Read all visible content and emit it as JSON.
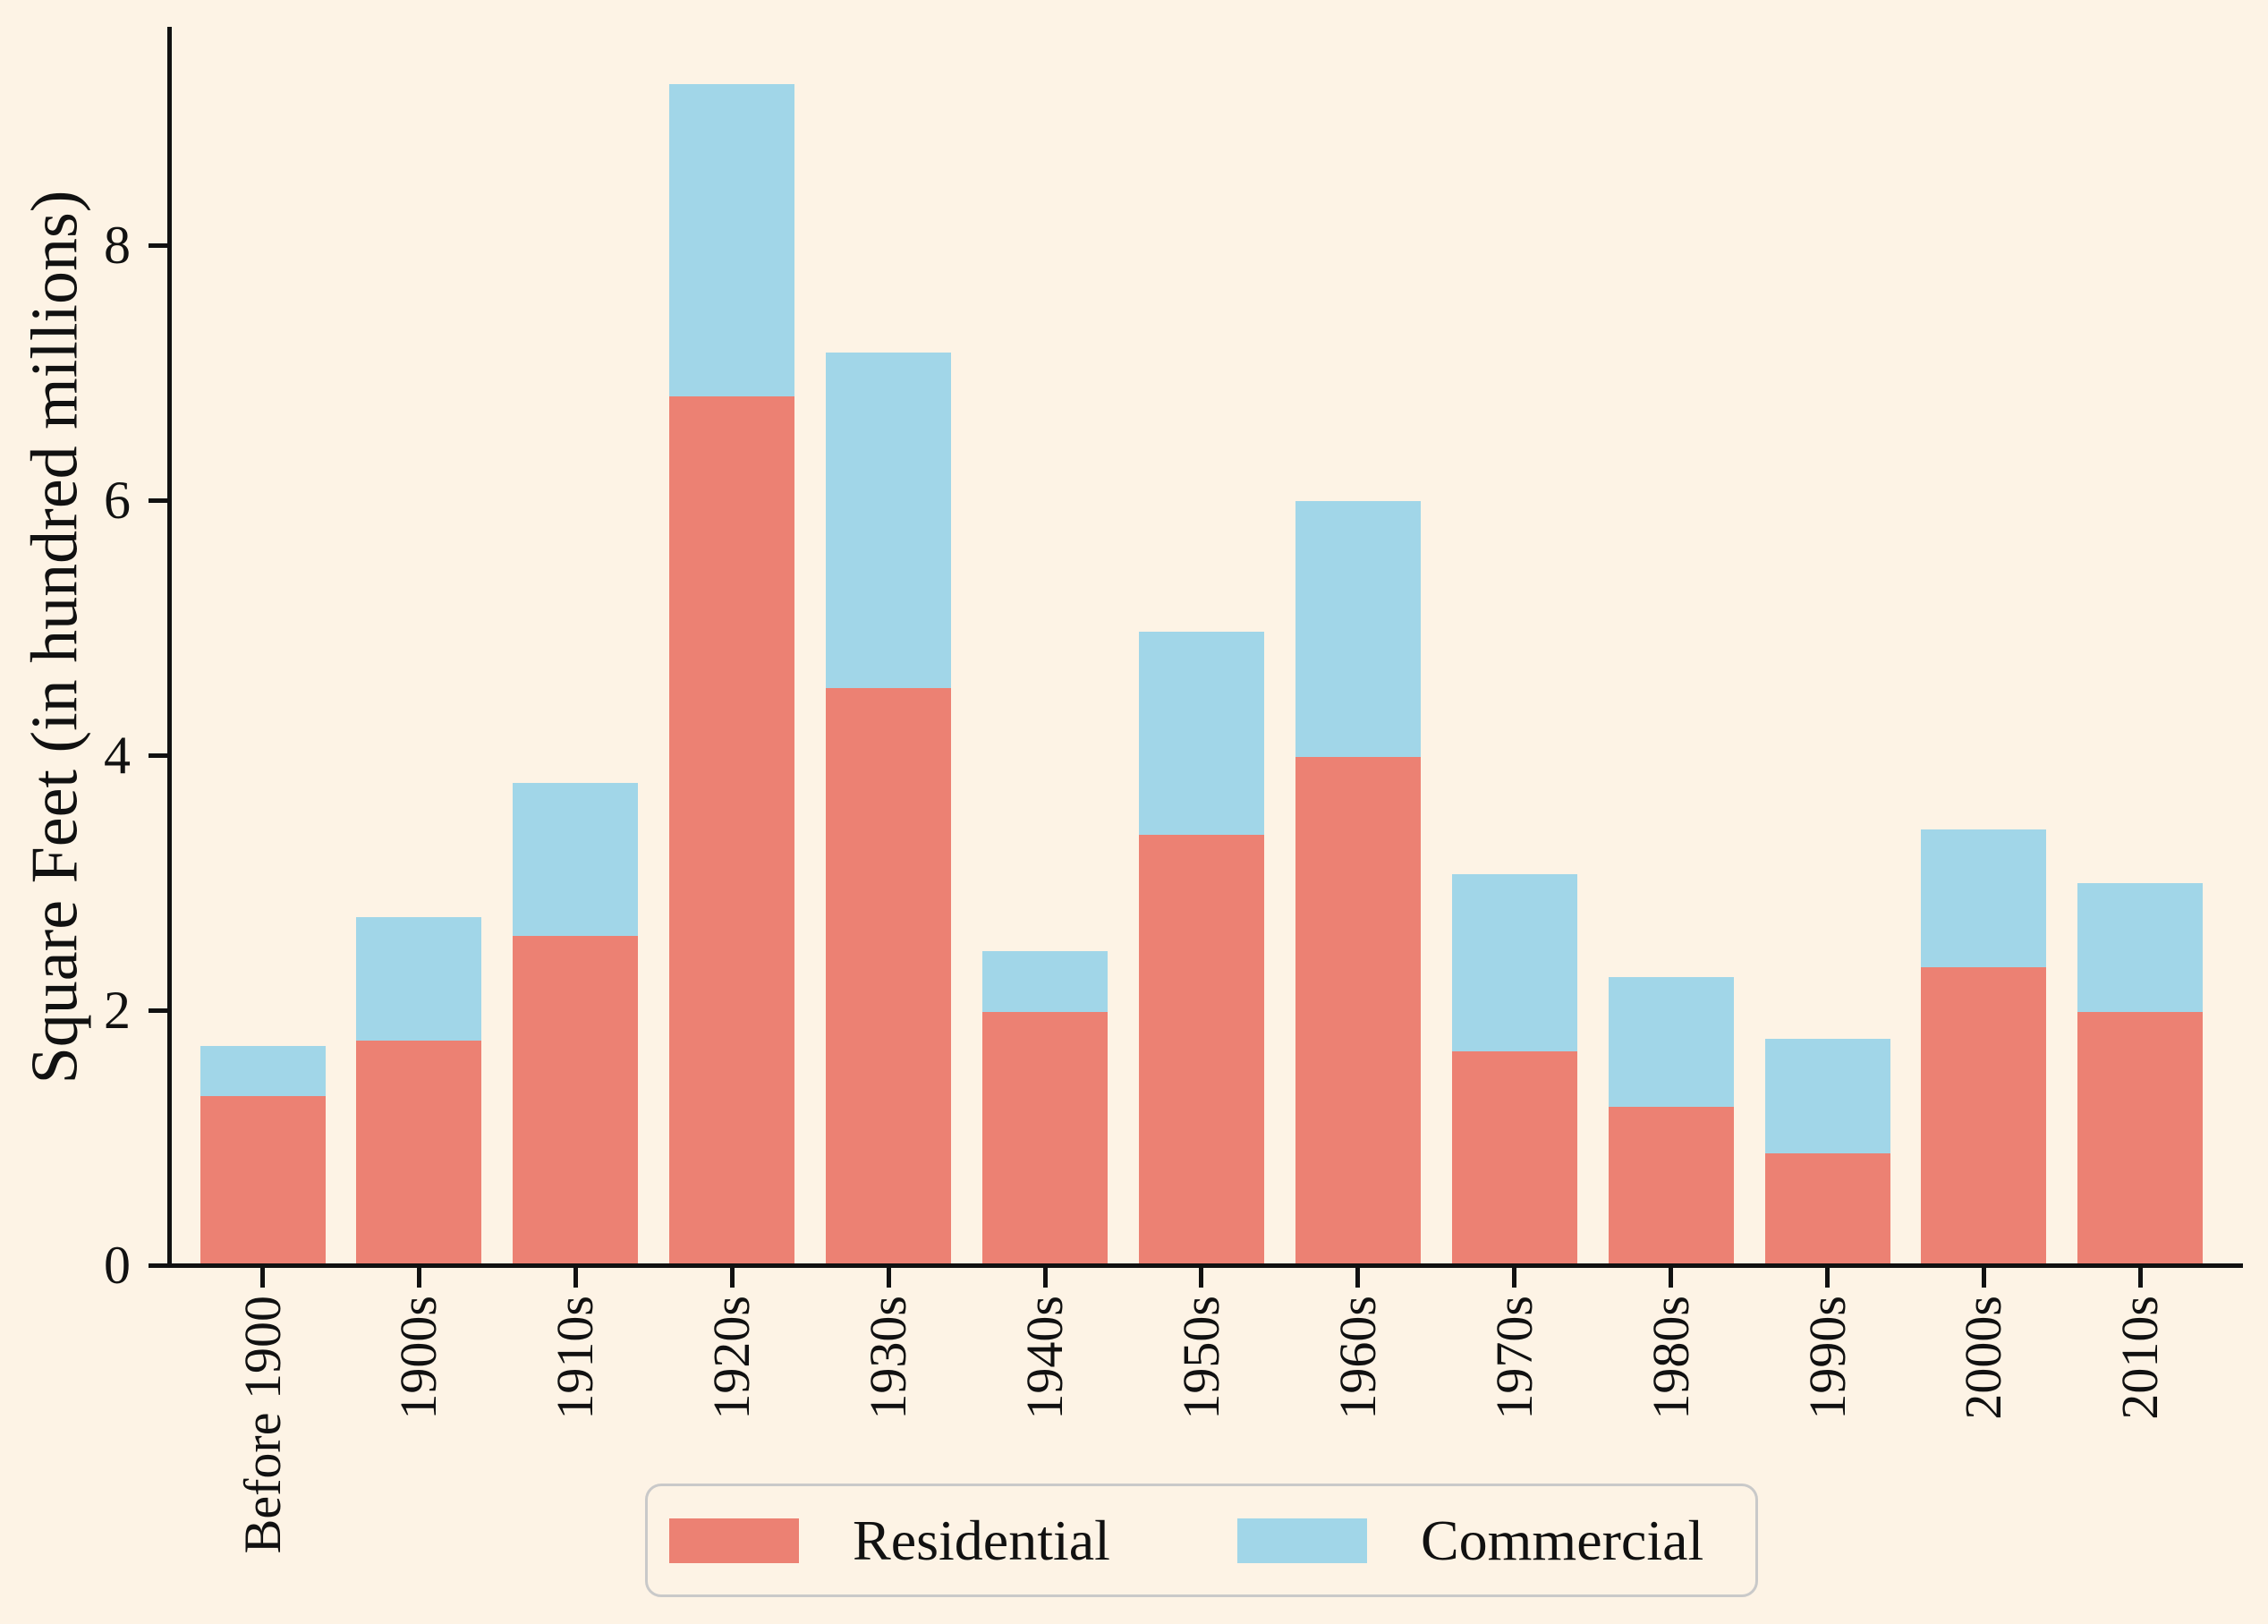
{
  "chart_data": {
    "type": "bar",
    "stacked": true,
    "title": "",
    "xlabel": "",
    "ylabel": "Square Feet (in hundred millions)",
    "categories": [
      "Before 1900",
      "1900s",
      "1910s",
      "1920s",
      "1930s",
      "1940s",
      "1950s",
      "1960s",
      "1970s",
      "1980s",
      "1990s",
      "2000s",
      "2010s"
    ],
    "series": [
      {
        "name": "Residential",
        "color": "#EC8173",
        "values": [
          1.31,
          1.75,
          2.57,
          6.8,
          4.51,
          1.97,
          3.36,
          3.97,
          1.66,
          1.23,
          0.86,
          2.32,
          1.97
        ]
      },
      {
        "name": "Commercial",
        "color": "#A1D6E8",
        "values": [
          0.39,
          0.97,
          1.2,
          2.45,
          2.63,
          0.48,
          1.59,
          2.01,
          1.39,
          1.02,
          0.9,
          1.08,
          1.01
        ]
      }
    ],
    "totals": [
      1.7,
      2.72,
      3.77,
      9.25,
      7.14,
      2.45,
      4.95,
      5.98,
      3.05,
      2.25,
      1.76,
      3.4,
      2.98
    ],
    "y_ticks": [
      "0",
      "2",
      "4",
      "6",
      "8"
    ],
    "y_tick_values": [
      0,
      2,
      4,
      6,
      8
    ],
    "ylim": [
      0,
      9.7
    ],
    "grid": false,
    "legend_position": "bottom-center",
    "background_color": "#FDF3E5",
    "axis_color": "#111111"
  }
}
